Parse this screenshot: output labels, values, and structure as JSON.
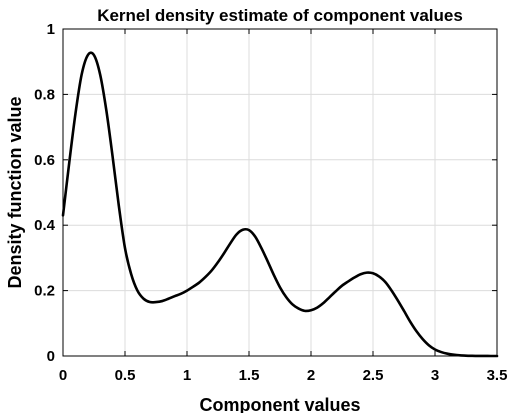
{
  "chart_data": {
    "type": "line",
    "title": "Kernel density estimate of component values",
    "xlabel": "Component values",
    "ylabel": "Density function value",
    "xlim": [
      0,
      3.5
    ],
    "ylim": [
      0,
      1
    ],
    "grid": true,
    "x_ticks": [
      "0",
      "0.5",
      "1",
      "1.5",
      "2",
      "2.5",
      "3",
      "3.5"
    ],
    "y_ticks": [
      "0",
      "0.2",
      "0.4",
      "0.6",
      "0.8",
      "1"
    ],
    "series": [
      {
        "color": "#000000",
        "x": [
          0.0,
          0.05,
          0.1,
          0.15,
          0.2,
          0.25,
          0.3,
          0.35,
          0.4,
          0.45,
          0.5,
          0.55,
          0.6,
          0.65,
          0.7,
          0.75,
          0.8,
          0.85,
          0.9,
          0.95,
          1.0,
          1.05,
          1.1,
          1.15,
          1.2,
          1.25,
          1.3,
          1.35,
          1.4,
          1.45,
          1.5,
          1.55,
          1.6,
          1.65,
          1.7,
          1.75,
          1.8,
          1.85,
          1.9,
          1.95,
          2.0,
          2.05,
          2.1,
          2.15,
          2.2,
          2.25,
          2.3,
          2.35,
          2.4,
          2.45,
          2.5,
          2.55,
          2.6,
          2.65,
          2.7,
          2.75,
          2.8,
          2.85,
          2.9,
          2.95,
          3.0,
          3.05,
          3.1,
          3.15,
          3.2,
          3.25,
          3.3,
          3.35,
          3.4,
          3.45,
          3.5
        ],
        "y": [
          0.43,
          0.59,
          0.74,
          0.86,
          0.92,
          0.92,
          0.86,
          0.75,
          0.61,
          0.46,
          0.33,
          0.25,
          0.2,
          0.175,
          0.165,
          0.165,
          0.168,
          0.175,
          0.183,
          0.19,
          0.2,
          0.212,
          0.225,
          0.242,
          0.262,
          0.287,
          0.315,
          0.345,
          0.372,
          0.386,
          0.385,
          0.365,
          0.33,
          0.29,
          0.248,
          0.21,
          0.18,
          0.158,
          0.145,
          0.138,
          0.14,
          0.148,
          0.162,
          0.18,
          0.198,
          0.215,
          0.228,
          0.24,
          0.25,
          0.255,
          0.253,
          0.243,
          0.226,
          0.2,
          0.17,
          0.138,
          0.105,
          0.076,
          0.052,
          0.033,
          0.02,
          0.012,
          0.007,
          0.004,
          0.002,
          0.001,
          0.0005,
          0.0002,
          0.0001,
          0.0,
          0.0
        ]
      }
    ]
  }
}
